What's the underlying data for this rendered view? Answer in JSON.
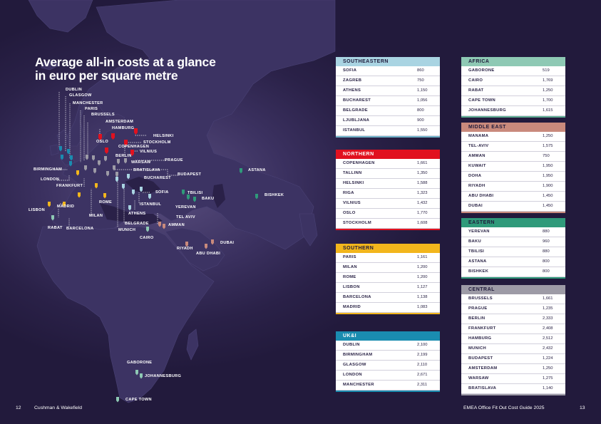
{
  "title": {
    "line1": "Average all-in costs at a glance",
    "line2": "in euro per square metre"
  },
  "footer": {
    "page_left": "12",
    "publisher": "Cushman & Wakefield",
    "guide": "EMEA Office Fit Out Cost Guide 2025",
    "page_right": "13"
  },
  "regions": {
    "southeastern": {
      "name": "SOUTHEASTERN",
      "color": "#a9d4e2",
      "text_color": "#1f1a3a",
      "bar_color": "#6fb2c8",
      "rows": [
        {
          "city": "SOFIA",
          "value": "860"
        },
        {
          "city": "ZAGREB",
          "value": "750"
        },
        {
          "city": "ATHENS",
          "value": "1,150"
        },
        {
          "city": "BUCHAREST",
          "value": "1,056"
        },
        {
          "city": "BELGRADE",
          "value": "800"
        },
        {
          "city": "LJUBLJANA",
          "value": "900"
        },
        {
          "city": "ISTANBUL",
          "value": "1,550"
        }
      ]
    },
    "northern": {
      "name": "NORTHERN",
      "color": "#e1111f",
      "text_color": "#ffffff",
      "bar_color": "#e1111f",
      "rows": [
        {
          "city": "COPENHAGEN",
          "value": "1,661"
        },
        {
          "city": "TALLINN",
          "value": "1,350"
        },
        {
          "city": "HELSINKI",
          "value": "1,588"
        },
        {
          "city": "RIGA",
          "value": "1,323"
        },
        {
          "city": "VILNIUS",
          "value": "1,432"
        },
        {
          "city": "OSLO",
          "value": "1,770"
        },
        {
          "city": "STOCKHOLM",
          "value": "1,608"
        }
      ]
    },
    "southern": {
      "name": "SOUTHERN",
      "color": "#f2b61c",
      "text_color": "#1f1a3a",
      "bar_color": "#f2b61c",
      "rows": [
        {
          "city": "PARIS",
          "value": "1,161"
        },
        {
          "city": "MILAN",
          "value": "1,200"
        },
        {
          "city": "ROME",
          "value": "1,200"
        },
        {
          "city": "LISBON",
          "value": "1,127"
        },
        {
          "city": "BARCELONA",
          "value": "1,138"
        },
        {
          "city": "MADRID",
          "value": "1,083"
        }
      ]
    },
    "uki": {
      "name": "UK&I",
      "color": "#1a8cb0",
      "text_color": "#ffffff",
      "bar_color": "#1a8cb0",
      "rows": [
        {
          "city": "DUBLIN",
          "value": "2,100"
        },
        {
          "city": "BIRMINGHAM",
          "value": "2,199"
        },
        {
          "city": "GLASGOW",
          "value": "2,110"
        },
        {
          "city": "LONDON",
          "value": "2,671"
        },
        {
          "city": "MANCHESTER",
          "value": "2,311"
        }
      ]
    },
    "africa": {
      "name": "AFRICA",
      "color": "#8ec9b4",
      "text_color": "#1f1a3a",
      "bar_color": "#5eae93",
      "rows": [
        {
          "city": "GABORONE",
          "value": "519"
        },
        {
          "city": "CAIRO",
          "value": "1,769"
        },
        {
          "city": "RABAT",
          "value": "1,250"
        },
        {
          "city": "CAPE TOWN",
          "value": "1,700"
        },
        {
          "city": "JOHANNESBURG",
          "value": "1,615"
        }
      ]
    },
    "middle_east": {
      "name": "MIDDLE EAST",
      "color": "#c98a7c",
      "text_color": "#1f1a3a",
      "bar_color": "#c98a7c",
      "rows": [
        {
          "city": "MANAMA",
          "value": "1,250"
        },
        {
          "city": "TEL-AVIV",
          "value": "1,575"
        },
        {
          "city": "AMMAN",
          "value": "750"
        },
        {
          "city": "KUWAIT",
          "value": "1,950"
        },
        {
          "city": "DOHA",
          "value": "1,950"
        },
        {
          "city": "RIYADH",
          "value": "1,900"
        },
        {
          "city": "ABU DHABI",
          "value": "1,450"
        },
        {
          "city": "DUBAI",
          "value": "1,450"
        }
      ]
    },
    "eastern": {
      "name": "EASTERN",
      "color": "#2f9a7a",
      "text_color": "#1f1a3a",
      "bar_color": "#2f9a7a",
      "rows": [
        {
          "city": "YEREVAN",
          "value": "880"
        },
        {
          "city": "BAKU",
          "value": "960"
        },
        {
          "city": "TBILISI",
          "value": "880"
        },
        {
          "city": "ASTANA",
          "value": "800"
        },
        {
          "city": "BISHKEK",
          "value": "800"
        }
      ]
    },
    "central": {
      "name": "CENTRAL",
      "color": "#9d9ba6",
      "text_color": "#1f1a3a",
      "bar_color": "#9d9ba6",
      "rows": [
        {
          "city": "BRUSSELS",
          "value": "1,661"
        },
        {
          "city": "PRAGUE",
          "value": "1,235"
        },
        {
          "city": "BERLIN",
          "value": "2,333"
        },
        {
          "city": "FRANKFURT",
          "value": "2,408"
        },
        {
          "city": "HAMBURG",
          "value": "2,512"
        },
        {
          "city": "MUNICH",
          "value": "2,432"
        },
        {
          "city": "BUDAPEST",
          "value": "1,224"
        },
        {
          "city": "AMSTERDAM",
          "value": "1,250"
        },
        {
          "city": "WARSAW",
          "value": "1,275"
        },
        {
          "city": "BRATISLAVA",
          "value": "1,140"
        }
      ]
    }
  },
  "map_labels": [
    {
      "id": "dublin",
      "text": "DUBLIN"
    },
    {
      "id": "glasgow",
      "text": "GLASGOW"
    },
    {
      "id": "manchester",
      "text": "MANCHESTER"
    },
    {
      "id": "paris",
      "text": "PARIS"
    },
    {
      "id": "brussels",
      "text": "BRUSSELS"
    },
    {
      "id": "amsterdam",
      "text": "AMSTERDAM"
    },
    {
      "id": "hamburg",
      "text": "HAMBURG"
    },
    {
      "id": "helsinki",
      "text": "HELSINKI"
    },
    {
      "id": "oslo",
      "text": "OSLO"
    },
    {
      "id": "stockholm",
      "text": "STOCKHOLM"
    },
    {
      "id": "copenhagen",
      "text": "COPENHAGEN"
    },
    {
      "id": "vilnius",
      "text": "VILNIUS"
    },
    {
      "id": "berlin",
      "text": "BERLIN"
    },
    {
      "id": "prague",
      "text": "PRAGUE"
    },
    {
      "id": "warsaw",
      "text": "WARSAW"
    },
    {
      "id": "birmingham",
      "text": "BIRMINGHAM"
    },
    {
      "id": "bratislava",
      "text": "BRATISLAVA"
    },
    {
      "id": "budapest",
      "text": "BUDAPEST"
    },
    {
      "id": "bucharest",
      "text": "BUCHAREST"
    },
    {
      "id": "london",
      "text": "LONDON"
    },
    {
      "id": "frankfurt",
      "text": "FRANKFURT"
    },
    {
      "id": "astana",
      "text": "ASTANA"
    },
    {
      "id": "sofia",
      "text": "SOFIA"
    },
    {
      "id": "tbilisi",
      "text": "TBILISI"
    },
    {
      "id": "baku",
      "text": "BAKU"
    },
    {
      "id": "bishkek",
      "text": "BISHKEK"
    },
    {
      "id": "rome",
      "text": "ROME"
    },
    {
      "id": "istanbul",
      "text": "ISTANBUL"
    },
    {
      "id": "madrid",
      "text": "MADRID"
    },
    {
      "id": "lisbon",
      "text": "LISBON"
    },
    {
      "id": "yerevan",
      "text": "YEREVAN"
    },
    {
      "id": "athens",
      "text": "ATHENS"
    },
    {
      "id": "milan",
      "text": "MILAN"
    },
    {
      "id": "tel_aviv",
      "text": "TEL AVIV"
    },
    {
      "id": "belgrade",
      "text": "BELGRADE"
    },
    {
      "id": "amman",
      "text": "AMMAN"
    },
    {
      "id": "rabat",
      "text": "RABAT"
    },
    {
      "id": "barcelona",
      "text": "BARCELONA"
    },
    {
      "id": "munich",
      "text": "MUNICH"
    },
    {
      "id": "cairo",
      "text": "CAIRO"
    },
    {
      "id": "dubai",
      "text": "DUBAI"
    },
    {
      "id": "riyadh",
      "text": "RIYADH"
    },
    {
      "id": "abu_dhabi",
      "text": "ABU DHABI"
    },
    {
      "id": "gaborone",
      "text": "GABORONE"
    },
    {
      "id": "johannesburg",
      "text": "JOHANNESBURG"
    },
    {
      "id": "cape_town",
      "text": "CAPE TOWN"
    }
  ]
}
